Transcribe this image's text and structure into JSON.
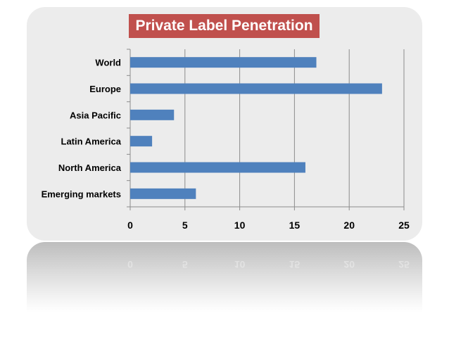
{
  "chart_data": {
    "type": "bar",
    "orientation": "horizontal",
    "title": "Private Label Penetration",
    "categories": [
      "World",
      "Europe",
      "Asia Pacific",
      "Latin America",
      "North America",
      "Emerging markets"
    ],
    "values": [
      17,
      23,
      4,
      2,
      16,
      6
    ],
    "xlim": [
      0,
      25
    ],
    "xticks": [
      0,
      5,
      10,
      15,
      20,
      25
    ],
    "grid": true,
    "legend": "none"
  },
  "colors": {
    "bar": "#4f81bd",
    "title_bg": "#c0504d",
    "card_bg": "#ececec",
    "grid": "#8c8c8c"
  }
}
